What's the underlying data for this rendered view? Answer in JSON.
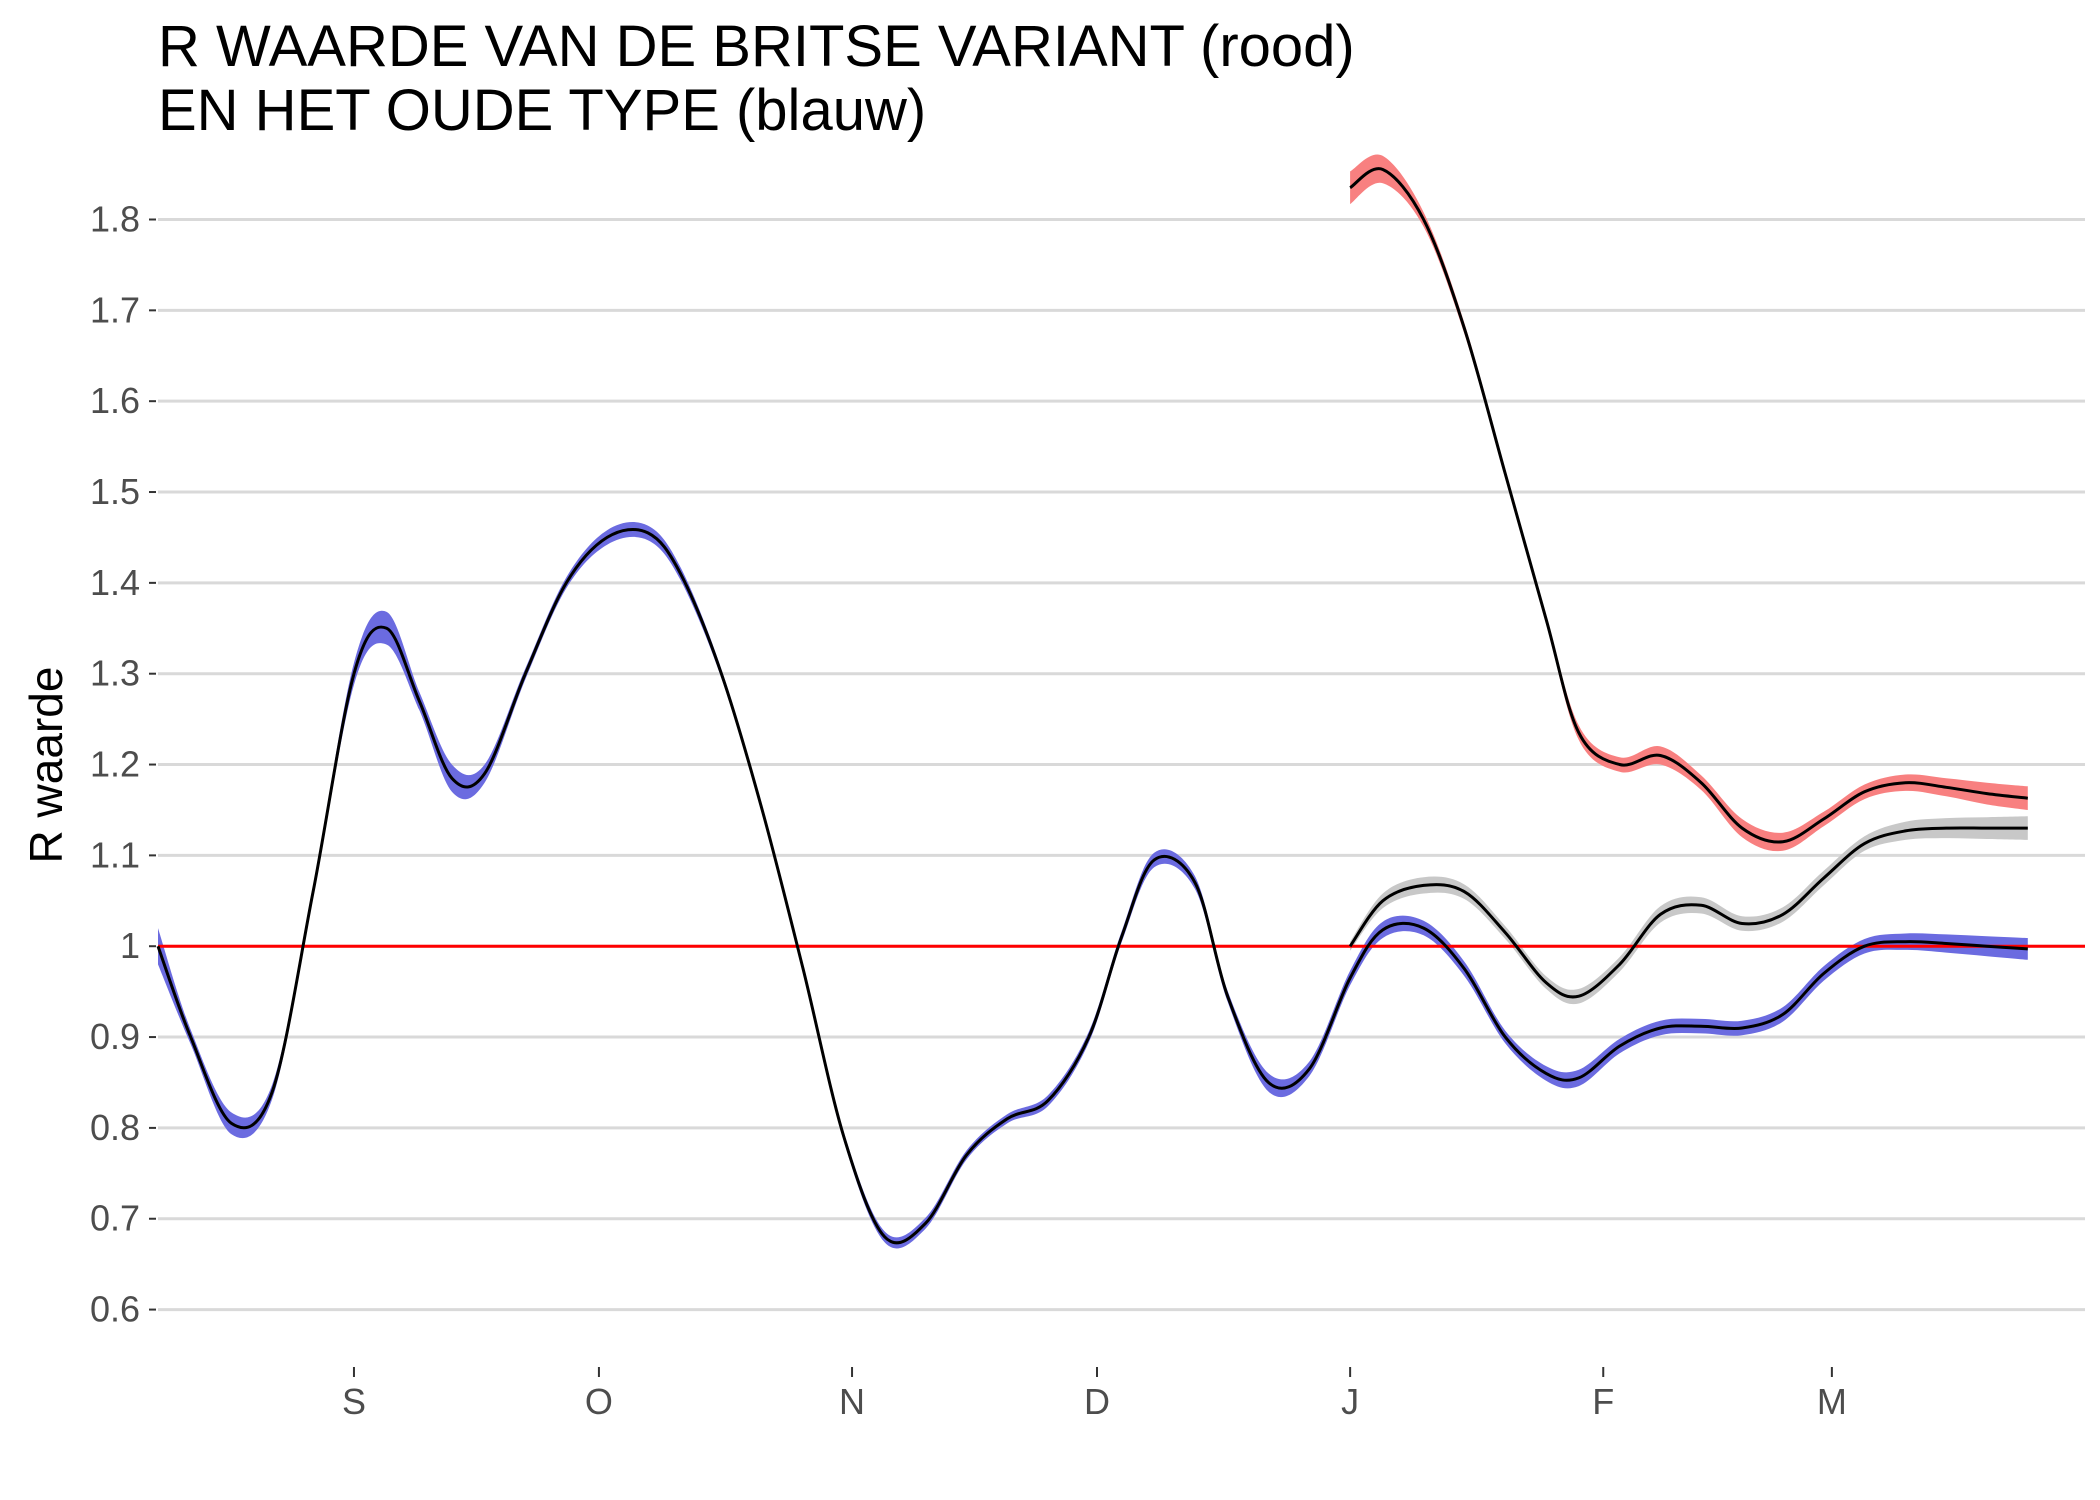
{
  "chart_data": {
    "type": "line",
    "title_lines": [
      "R WAARDE VAN DE BRITSE VARIANT (rood)",
      "EN HET OUDE TYPE (blauw)"
    ],
    "xlabel": "",
    "ylabel": "R waarde",
    "ylim": [
      0.55,
      1.86
    ],
    "xlim": [
      "2020-08-08",
      "2021-04-01"
    ],
    "y_ticks": [
      {
        "value": 0.6,
        "label": "0.6"
      },
      {
        "value": 0.7,
        "label": "0.7"
      },
      {
        "value": 0.8,
        "label": "0.8"
      },
      {
        "value": 0.9,
        "label": "0.9"
      },
      {
        "value": 1.0,
        "label": "1"
      },
      {
        "value": 1.1,
        "label": "1.1"
      },
      {
        "value": 1.2,
        "label": "1.2"
      },
      {
        "value": 1.3,
        "label": "1.3"
      },
      {
        "value": 1.4,
        "label": "1.4"
      },
      {
        "value": 1.5,
        "label": "1.5"
      },
      {
        "value": 1.6,
        "label": "1.6"
      },
      {
        "value": 1.7,
        "label": "1.7"
      },
      {
        "value": 1.8,
        "label": "1.8"
      }
    ],
    "x_ticks": [
      {
        "date": "2020-09-01",
        "label": "S"
      },
      {
        "date": "2020-10-01",
        "label": "O"
      },
      {
        "date": "2020-11-01",
        "label": "N"
      },
      {
        "date": "2020-12-01",
        "label": "D"
      },
      {
        "date": "2021-01-01",
        "label": "J"
      },
      {
        "date": "2021-02-01",
        "label": "F"
      },
      {
        "date": "2021-03-01",
        "label": "M"
      }
    ],
    "grid": "horizontal",
    "legend": "none",
    "reference_line": {
      "y": 1.0,
      "color": "#ff0000"
    },
    "series": [
      {
        "color": "#ff0000",
        "ribbon_color": "#f88080",
        "x": [
          "2021-01-01",
          "2021-01-05",
          "2021-01-10",
          "2021-01-15",
          "2021-01-20",
          "2021-01-25",
          "2021-01-29",
          "2021-02-03",
          "2021-02-08",
          "2021-02-13",
          "2021-02-18",
          "2021-02-23",
          "2021-02-28",
          "2021-03-05",
          "2021-03-10",
          "2021-03-15",
          "2021-03-20",
          "2021-03-25"
        ],
        "y": [
          1.835,
          1.855,
          1.8,
          1.68,
          1.52,
          1.36,
          1.235,
          1.2,
          1.21,
          1.18,
          1.13,
          1.115,
          1.14,
          1.17,
          1.18,
          1.175,
          1.168,
          1.163
        ],
        "band": [
          0.018,
          0.015,
          0.008,
          0.006,
          0.005,
          0.005,
          0.008,
          0.008,
          0.01,
          0.008,
          0.01,
          0.01,
          0.008,
          0.008,
          0.009,
          0.01,
          0.012,
          0.013
        ]
      },
      {
        "color": "#000000",
        "ribbon_color": "#c8c8c8",
        "x": [
          "2021-01-01",
          "2021-01-05",
          "2021-01-10",
          "2021-01-15",
          "2021-01-20",
          "2021-01-25",
          "2021-01-29",
          "2021-02-03",
          "2021-02-08",
          "2021-02-13",
          "2021-02-18",
          "2021-02-23",
          "2021-02-28",
          "2021-03-05",
          "2021-03-10",
          "2021-03-15",
          "2021-03-20",
          "2021-03-25"
        ],
        "y": [
          1.0,
          1.05,
          1.067,
          1.06,
          1.015,
          0.96,
          0.945,
          0.98,
          1.035,
          1.045,
          1.025,
          1.035,
          1.075,
          1.113,
          1.127,
          1.13,
          1.13,
          1.13
        ],
        "band": [
          0.005,
          0.008,
          0.009,
          0.008,
          0.007,
          0.007,
          0.008,
          0.008,
          0.009,
          0.009,
          0.008,
          0.008,
          0.008,
          0.008,
          0.01,
          0.011,
          0.012,
          0.013
        ]
      },
      {
        "color": "#000000",
        "ribbon_color": "#6b6be0",
        "x": [
          "2020-08-08",
          "2020-08-12",
          "2020-08-17",
          "2020-08-22",
          "2020-08-27",
          "2020-09-01",
          "2020-09-05",
          "2020-09-09",
          "2020-09-13",
          "2020-09-17",
          "2020-09-22",
          "2020-09-27",
          "2020-10-02",
          "2020-10-07",
          "2020-10-11",
          "2020-10-16",
          "2020-10-21",
          "2020-10-26",
          "2020-10-31",
          "2020-11-05",
          "2020-11-10",
          "2020-11-15",
          "2020-11-20",
          "2020-11-25",
          "2020-11-30",
          "2020-12-04",
          "2020-12-08",
          "2020-12-13",
          "2020-12-17",
          "2020-12-22",
          "2020-12-27",
          "2021-01-01",
          "2021-01-05",
          "2021-01-10",
          "2021-01-15",
          "2021-01-20",
          "2021-01-25",
          "2021-01-29",
          "2021-02-03",
          "2021-02-08",
          "2021-02-13",
          "2021-02-18",
          "2021-02-23",
          "2021-02-28",
          "2021-03-05",
          "2021-03-10",
          "2021-03-15",
          "2021-03-20",
          "2021-03-25"
        ],
        "y": [
          1.0,
          0.9,
          0.805,
          0.84,
          1.06,
          1.3,
          1.35,
          1.27,
          1.185,
          1.19,
          1.3,
          1.4,
          1.45,
          1.455,
          1.41,
          1.3,
          1.15,
          0.975,
          0.79,
          0.68,
          0.695,
          0.77,
          0.81,
          0.83,
          0.9,
          1.01,
          1.095,
          1.07,
          0.945,
          0.85,
          0.865,
          0.965,
          1.018,
          1.02,
          0.975,
          0.9,
          0.86,
          0.855,
          0.89,
          0.91,
          0.912,
          0.91,
          0.925,
          0.97,
          1.0,
          1.005,
          1.003,
          1.0,
          0.997
        ],
        "band": [
          0.02,
          0.008,
          0.012,
          0.008,
          0.006,
          0.012,
          0.018,
          0.01,
          0.015,
          0.01,
          0.006,
          0.006,
          0.008,
          0.008,
          0.007,
          0.005,
          0.004,
          0.004,
          0.005,
          0.006,
          0.006,
          0.005,
          0.005,
          0.006,
          0.006,
          0.006,
          0.008,
          0.007,
          0.006,
          0.01,
          0.008,
          0.008,
          0.009,
          0.008,
          0.008,
          0.007,
          0.008,
          0.009,
          0.008,
          0.008,
          0.008,
          0.008,
          0.008,
          0.008,
          0.008,
          0.009,
          0.01,
          0.011,
          0.012
        ]
      }
    ]
  }
}
